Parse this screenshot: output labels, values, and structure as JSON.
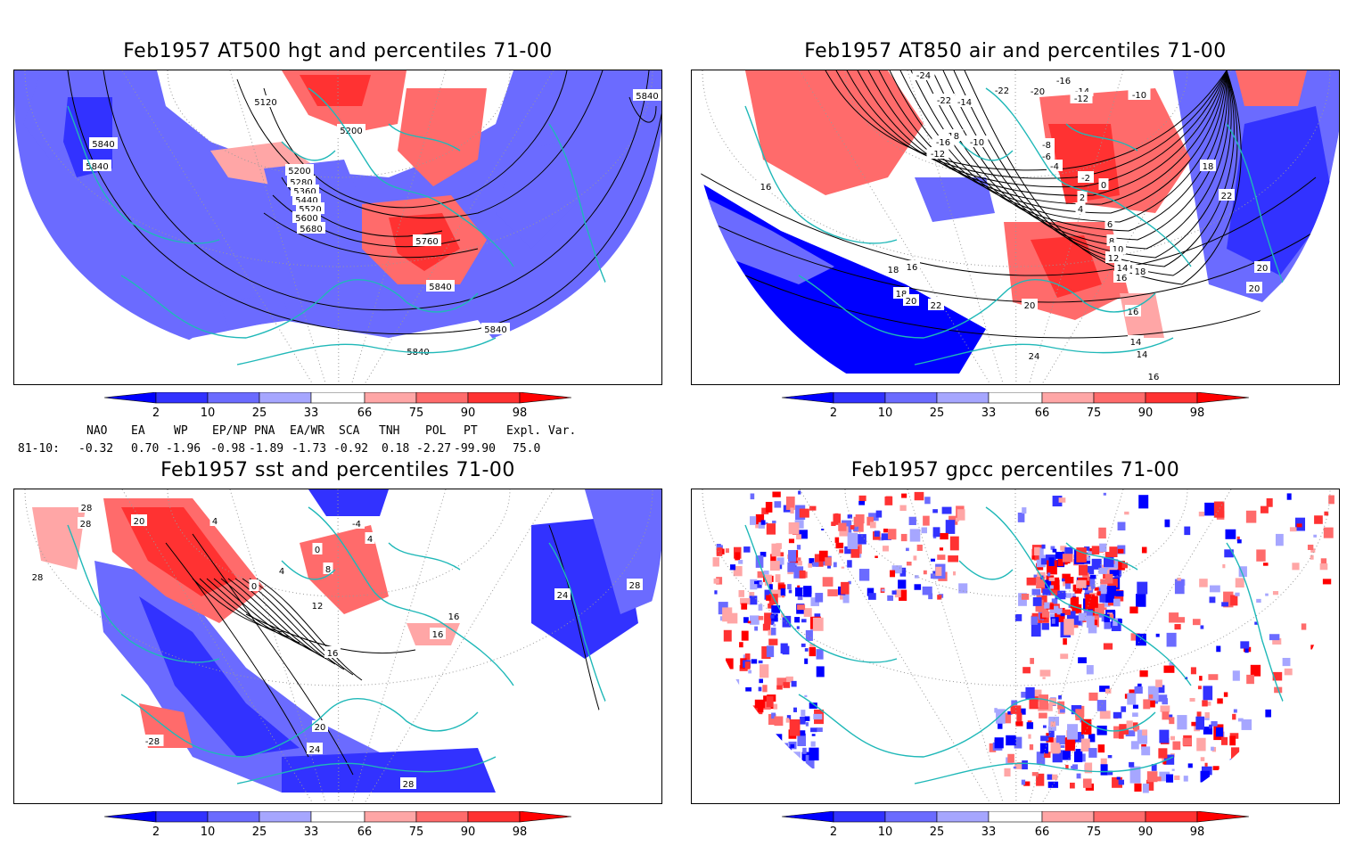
{
  "panels": [
    {
      "id": "p1",
      "title": "Feb1957 AT500 hgt and percentiles 71-00",
      "contour_labels": [
        "5840",
        "5840",
        "5120",
        "5200",
        "5200",
        "5280",
        "5360",
        "5440",
        "5520",
        "5600",
        "5680",
        "5760",
        "5840",
        "5840",
        "5840",
        "5840"
      ]
    },
    {
      "id": "p2",
      "title": "Feb1957 AT850 air and percentiles 71-00",
      "contour_labels": [
        "-24",
        "-22",
        "-22",
        "-14",
        "-20",
        "-16",
        "-14",
        "-12",
        "-10",
        "-18",
        "-16",
        "-12",
        "-10",
        "-8",
        "-6",
        "-4",
        "-2",
        "0",
        "2",
        "4",
        "6",
        "8",
        "10",
        "12",
        "14",
        "16",
        "16",
        "18",
        "18",
        "20",
        "22",
        "24",
        "20",
        "14",
        "14",
        "16",
        "16",
        "18",
        "20",
        "20",
        "22",
        "18",
        "8",
        "16"
      ]
    },
    {
      "id": "p3",
      "title": "Feb1957 sst and percentiles 71-00",
      "contour_labels": [
        "28",
        "28",
        "20",
        "4",
        "0",
        "-4",
        "4",
        "8",
        "12",
        "16",
        "20",
        "24",
        "28",
        "28",
        "24",
        "28",
        "-28",
        "16",
        "16",
        "0",
        "4"
      ]
    },
    {
      "id": "p4",
      "title": "Feb1957 gpcc percentiles 71-00",
      "contour_labels": []
    }
  ],
  "colorbar": {
    "labels": [
      "2",
      "10",
      "25",
      "33",
      "66",
      "75",
      "90",
      "98"
    ],
    "colors": {
      "below2": "#0000ff",
      "b2_10": "#3232ff",
      "b10_25": "#6b6bff",
      "b25_33": "#a6a6ff",
      "neutral": "#ffffff",
      "a66_75": "#ffa6a6",
      "a75_90": "#ff6b6b",
      "a90_98": "#ff3232",
      "above98": "#ff0000"
    }
  },
  "indices": {
    "headers": [
      "NAO",
      "EA",
      "WP",
      "EP/NP",
      "PNA",
      "EA/WR",
      "SCA",
      "TNH",
      "POL",
      "PT",
      "Expl. Var."
    ],
    "row_label": "81-10:",
    "values": [
      "-0.32",
      "0.70",
      "-1.96",
      "-0.98",
      "-1.89",
      "-1.73",
      "-0.92",
      "0.18",
      "-2.27",
      "-99.90",
      "75.0"
    ]
  },
  "colors": {
    "coast": "#1fb8b8",
    "contour": "#000000"
  }
}
